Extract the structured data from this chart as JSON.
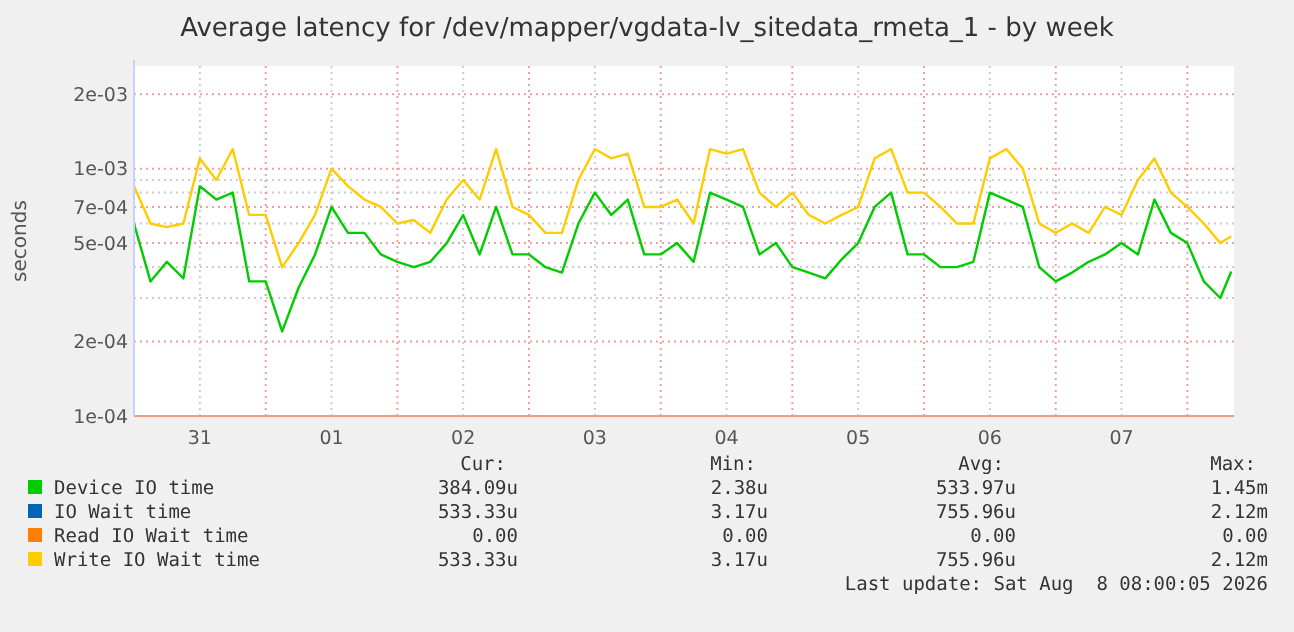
{
  "chart_data": {
    "type": "line",
    "title": "Average latency for /dev/mapper/vgdata-lv_sitedata_rmeta_1 - by week",
    "ylabel": "seconds",
    "log": true,
    "grid": true,
    "legend": "bottom",
    "marker": "none",
    "line_style": "solid",
    "xlim": [
      "2026-07-31T00:00",
      "2026-08-08T08:30"
    ],
    "xticks": [
      {
        "value": "2026-07-31T12:00",
        "label": "31"
      },
      {
        "value": "2026-08-01T00:00",
        "label": null
      },
      {
        "value": "2026-08-01T12:00",
        "label": "01"
      },
      {
        "value": "2026-08-02T00:00",
        "label": null
      },
      {
        "value": "2026-08-02T12:00",
        "label": "02"
      },
      {
        "value": "2026-08-03T00:00",
        "label": null
      },
      {
        "value": "2026-08-03T12:00",
        "label": "03"
      },
      {
        "value": "2026-08-04T00:00",
        "label": null
      },
      {
        "value": "2026-08-04T12:00",
        "label": "04"
      },
      {
        "value": "2026-08-05T00:00",
        "label": null
      },
      {
        "value": "2026-08-05T12:00",
        "label": "05"
      },
      {
        "value": "2026-08-06T00:00",
        "label": null
      },
      {
        "value": "2026-08-06T12:00",
        "label": "06"
      },
      {
        "value": "2026-08-07T00:00",
        "label": null
      },
      {
        "value": "2026-08-07T12:00",
        "label": "07"
      },
      {
        "value": "2026-08-08T00:00",
        "label": null
      }
    ],
    "ylim": [
      0.0001,
      0.0026
    ],
    "yticks": [
      {
        "value": 0.0001,
        "label": "1e-04"
      },
      {
        "value": 0.0002,
        "label": "2e-04"
      },
      {
        "value": 0.0003,
        "label": null
      },
      {
        "value": 0.0004,
        "label": null
      },
      {
        "value": 0.0005,
        "label": "5e-04"
      },
      {
        "value": 0.0006,
        "label": null
      },
      {
        "value": 0.0007,
        "label": "7e-04"
      },
      {
        "value": 0.0008,
        "label": null
      },
      {
        "value": 0.0009,
        "label": null
      },
      {
        "value": 0.001,
        "label": "1e-03"
      },
      {
        "value": 0.002,
        "label": "2e-03"
      }
    ],
    "x": [
      "2026-07-31T00:00",
      "2026-07-31T03:00",
      "2026-07-31T06:00",
      "2026-07-31T09:00",
      "2026-07-31T12:00",
      "2026-07-31T15:00",
      "2026-07-31T18:00",
      "2026-07-31T21:00",
      "2026-08-01T00:00",
      "2026-08-01T03:00",
      "2026-08-01T06:00",
      "2026-08-01T09:00",
      "2026-08-01T12:00",
      "2026-08-01T15:00",
      "2026-08-01T18:00",
      "2026-08-01T21:00",
      "2026-08-02T00:00",
      "2026-08-02T03:00",
      "2026-08-02T06:00",
      "2026-08-02T09:00",
      "2026-08-02T12:00",
      "2026-08-02T15:00",
      "2026-08-02T18:00",
      "2026-08-02T21:00",
      "2026-08-03T00:00",
      "2026-08-03T03:00",
      "2026-08-03T06:00",
      "2026-08-03T09:00",
      "2026-08-03T12:00",
      "2026-08-03T15:00",
      "2026-08-03T18:00",
      "2026-08-03T21:00",
      "2026-08-04T00:00",
      "2026-08-04T03:00",
      "2026-08-04T06:00",
      "2026-08-04T09:00",
      "2026-08-04T12:00",
      "2026-08-04T15:00",
      "2026-08-04T18:00",
      "2026-08-04T21:00",
      "2026-08-05T00:00",
      "2026-08-05T03:00",
      "2026-08-05T06:00",
      "2026-08-05T09:00",
      "2026-08-05T12:00",
      "2026-08-05T15:00",
      "2026-08-05T18:00",
      "2026-08-05T21:00",
      "2026-08-06T00:00",
      "2026-08-06T03:00",
      "2026-08-06T06:00",
      "2026-08-06T09:00",
      "2026-08-06T12:00",
      "2026-08-06T15:00",
      "2026-08-06T18:00",
      "2026-08-06T21:00",
      "2026-08-07T00:00",
      "2026-08-07T03:00",
      "2026-08-07T06:00",
      "2026-08-07T09:00",
      "2026-08-07T12:00",
      "2026-08-07T15:00",
      "2026-08-07T18:00",
      "2026-08-07T21:00",
      "2026-08-08T00:00",
      "2026-08-08T03:00",
      "2026-08-08T06:00",
      "2026-08-08T08:00"
    ],
    "series": [
      {
        "name": "Device IO time",
        "color": "#00cc00",
        "values": [
          0.0006,
          0.00035,
          0.00042,
          0.00036,
          0.00085,
          0.00075,
          0.0008,
          0.00035,
          0.00035,
          0.00022,
          0.00033,
          0.00045,
          0.0007,
          0.00055,
          0.00055,
          0.00045,
          0.00042,
          0.0004,
          0.00042,
          0.0005,
          0.00065,
          0.00045,
          0.0007,
          0.00045,
          0.00045,
          0.0004,
          0.00038,
          0.0006,
          0.0008,
          0.00065,
          0.00075,
          0.00045,
          0.00045,
          0.0005,
          0.00042,
          0.0008,
          0.00075,
          0.0007,
          0.00045,
          0.0005,
          0.0004,
          0.00038,
          0.00036,
          0.00043,
          0.0005,
          0.0007,
          0.0008,
          0.00045,
          0.00045,
          0.0004,
          0.0004,
          0.00042,
          0.0008,
          0.00075,
          0.0007,
          0.0004,
          0.00035,
          0.00038,
          0.00042,
          0.00045,
          0.0005,
          0.00045,
          0.00075,
          0.00055,
          0.0005,
          0.00035,
          0.0003,
          0.000384
        ]
      },
      {
        "name": "IO Wait time",
        "color": "#0066b3",
        "values": [
          null,
          null,
          null,
          null,
          null,
          null,
          null,
          null,
          null,
          null,
          null,
          null,
          null,
          null,
          null,
          null,
          null,
          null,
          null,
          null,
          null,
          null,
          null,
          null,
          null,
          null,
          null,
          null,
          null,
          null,
          null,
          null,
          null,
          null,
          null,
          null,
          null,
          null,
          null,
          null,
          null,
          null,
          null,
          null,
          null,
          null,
          null,
          null,
          null,
          null,
          null,
          null,
          null,
          null,
          null,
          null,
          null,
          null,
          null,
          null,
          null,
          null,
          null,
          null,
          null,
          null,
          null,
          null
        ]
      },
      {
        "name": "Read IO Wait time",
        "color": "#ff8000",
        "values": [
          null,
          null,
          null,
          null,
          null,
          null,
          null,
          null,
          null,
          null,
          null,
          null,
          null,
          null,
          null,
          null,
          null,
          null,
          null,
          null,
          null,
          null,
          null,
          null,
          null,
          null,
          null,
          null,
          null,
          null,
          null,
          null,
          null,
          null,
          null,
          null,
          null,
          null,
          null,
          null,
          null,
          null,
          null,
          null,
          null,
          null,
          null,
          null,
          null,
          null,
          null,
          null,
          null,
          null,
          null,
          null,
          null,
          null,
          null,
          null,
          null,
          null,
          null,
          null,
          null,
          null,
          null,
          null
        ]
      },
      {
        "name": "Write IO Wait time",
        "color": "#ffcc00",
        "values": [
          0.00085,
          0.0006,
          0.00058,
          0.0006,
          0.0011,
          0.0009,
          0.0012,
          0.00065,
          0.00065,
          0.0004,
          0.0005,
          0.00065,
          0.001,
          0.00085,
          0.00075,
          0.0007,
          0.0006,
          0.00062,
          0.00055,
          0.00075,
          0.0009,
          0.00075,
          0.0012,
          0.0007,
          0.00065,
          0.00055,
          0.00055,
          0.0009,
          0.0012,
          0.0011,
          0.00115,
          0.0007,
          0.0007,
          0.00075,
          0.0006,
          0.0012,
          0.00115,
          0.0012,
          0.0008,
          0.0007,
          0.0008,
          0.00065,
          0.0006,
          0.00065,
          0.0007,
          0.0011,
          0.0012,
          0.0008,
          0.0008,
          0.0007,
          0.0006,
          0.0006,
          0.0011,
          0.0012,
          0.001,
          0.0006,
          0.00055,
          0.0006,
          0.00055,
          0.0007,
          0.00065,
          0.0009,
          0.0011,
          0.0008,
          0.0007,
          0.0006,
          0.0005,
          0.000533
        ]
      }
    ],
    "annotations": [
      "Cur:",
      "Min:",
      "Avg:",
      "Max:",
      "384.09u",
      "2.38u",
      "533.97u",
      "1.45m",
      "533.33u",
      "3.17u",
      "755.96u",
      "2.12m",
      "0.00",
      "0.00",
      "0.00",
      "0.00",
      "533.33u",
      "3.17u",
      "755.96u",
      "2.12m",
      "Last update: Sat Aug  8 08:00:05 2026"
    ]
  }
}
